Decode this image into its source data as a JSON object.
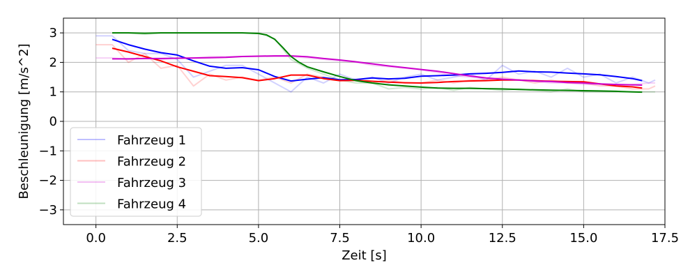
{
  "chart_data": {
    "type": "line",
    "xlabel": "Zeit [s]",
    "ylabel": "Beschleunigung [m/s^2]",
    "xlim": [
      -1,
      17.5
    ],
    "ylim": [
      -3.5,
      3.5
    ],
    "xticks": [
      0.0,
      2.5,
      5.0,
      7.5,
      10.0,
      12.5,
      15.0,
      17.5
    ],
    "xtick_labels": [
      "0.0",
      "2.5",
      "5.0",
      "7.5",
      "10.0",
      "12.5",
      "15.0",
      "17.5"
    ],
    "yticks": [
      3,
      2,
      1,
      0,
      -1,
      -2,
      -3
    ],
    "ytick_labels": [
      "3",
      "2",
      "1",
      "0",
      "−1",
      "−2",
      "−3"
    ],
    "grid": true,
    "legend_position": "lower-left",
    "series": [
      {
        "name": "Fahrzeug 1",
        "color": "#0000ff",
        "raw_x": [
          0.0,
          0.5,
          1.0,
          1.5,
          2.0,
          2.5,
          3.0,
          3.5,
          4.0,
          4.5,
          5.0,
          5.5,
          6.0,
          6.5,
          7.0,
          7.5,
          8.0,
          8.5,
          9.0,
          9.5,
          10.0,
          10.5,
          11.0,
          11.5,
          12.0,
          12.5,
          13.0,
          13.5,
          14.0,
          14.5,
          15.0,
          15.5,
          16.0,
          16.5,
          17.0,
          17.2
        ],
        "raw_y": [
          2.9,
          2.9,
          2.4,
          2.3,
          2.3,
          2.1,
          1.5,
          1.7,
          1.9,
          1.9,
          1.6,
          1.3,
          1.0,
          1.5,
          1.3,
          1.6,
          1.4,
          1.5,
          1.3,
          1.5,
          1.6,
          1.4,
          1.5,
          1.6,
          1.4,
          1.9,
          1.6,
          1.7,
          1.5,
          1.8,
          1.5,
          1.6,
          1.3,
          1.5,
          1.3,
          1.4
        ],
        "smooth_x": [
          0.5,
          1.0,
          1.5,
          2.0,
          2.5,
          3.0,
          3.5,
          4.0,
          4.5,
          5.0,
          5.5,
          6.0,
          6.5,
          7.0,
          7.5,
          8.0,
          8.5,
          9.0,
          9.5,
          10.0,
          10.5,
          11.0,
          11.5,
          12.0,
          12.5,
          13.0,
          13.5,
          14.0,
          14.5,
          15.0,
          15.5,
          16.0,
          16.5,
          16.8
        ],
        "smooth_y": [
          2.78,
          2.6,
          2.45,
          2.33,
          2.25,
          2.05,
          1.87,
          1.8,
          1.82,
          1.75,
          1.52,
          1.37,
          1.43,
          1.48,
          1.41,
          1.42,
          1.47,
          1.44,
          1.46,
          1.53,
          1.55,
          1.57,
          1.61,
          1.63,
          1.66,
          1.71,
          1.68,
          1.67,
          1.64,
          1.61,
          1.58,
          1.52,
          1.45,
          1.38
        ]
      },
      {
        "name": "Fahrzeug 2",
        "color": "#ff0000",
        "raw_x": [
          0.0,
          0.5,
          1.0,
          1.5,
          2.0,
          2.5,
          3.0,
          3.5,
          4.0,
          4.5,
          5.0,
          5.5,
          6.0,
          6.5,
          7.0,
          7.5,
          8.0,
          8.5,
          9.0,
          9.5,
          10.0,
          10.5,
          11.0,
          11.5,
          12.0,
          12.5,
          13.0,
          13.5,
          14.0,
          14.5,
          15.0,
          15.5,
          16.0,
          16.5,
          17.0,
          17.2
        ],
        "raw_y": [
          2.6,
          2.6,
          2.0,
          2.3,
          1.8,
          1.9,
          1.2,
          1.6,
          1.4,
          1.5,
          1.4,
          1.5,
          1.3,
          1.6,
          1.5,
          1.4,
          1.4,
          1.3,
          1.4,
          1.3,
          1.3,
          1.4,
          1.3,
          1.4,
          1.4,
          1.5,
          1.4,
          1.3,
          1.4,
          1.3,
          1.3,
          1.2,
          1.2,
          1.1,
          1.1,
          1.2
        ],
        "smooth_x": [
          0.5,
          1.0,
          1.5,
          2.0,
          2.5,
          3.0,
          3.5,
          4.0,
          4.5,
          5.0,
          5.5,
          6.0,
          6.5,
          7.0,
          7.5,
          8.0,
          8.5,
          9.0,
          9.5,
          10.0,
          10.5,
          11.0,
          11.5,
          12.0,
          12.5,
          13.0,
          13.5,
          14.0,
          14.5,
          15.0,
          15.5,
          16.0,
          16.5,
          16.8
        ],
        "smooth_y": [
          2.48,
          2.35,
          2.2,
          2.05,
          1.85,
          1.7,
          1.55,
          1.52,
          1.48,
          1.38,
          1.45,
          1.57,
          1.57,
          1.45,
          1.38,
          1.39,
          1.36,
          1.33,
          1.31,
          1.3,
          1.32,
          1.35,
          1.37,
          1.38,
          1.4,
          1.4,
          1.38,
          1.36,
          1.35,
          1.34,
          1.27,
          1.2,
          1.17,
          1.13
        ]
      },
      {
        "name": "Fahrzeug 3",
        "color": "#cc00cc",
        "raw_x": [
          0.0,
          0.5,
          1.0,
          1.5,
          2.0,
          2.5,
          3.0,
          3.5,
          4.0,
          4.5,
          5.0,
          5.5,
          6.0,
          6.5,
          7.0,
          7.5,
          8.0,
          8.5,
          9.0,
          9.5,
          10.0,
          10.5,
          11.0,
          11.5,
          12.0,
          12.5,
          13.0,
          13.5,
          14.0,
          14.5,
          15.0,
          15.5,
          16.0,
          16.5,
          17.0,
          17.2
        ],
        "raw_y": [
          2.15,
          2.15,
          2.1,
          2.15,
          2.1,
          2.15,
          2.15,
          2.2,
          2.2,
          2.2,
          2.2,
          2.2,
          2.2,
          2.15,
          2.1,
          2.05,
          2.0,
          1.9,
          1.85,
          1.8,
          1.75,
          1.65,
          1.55,
          1.5,
          1.45,
          1.4,
          1.4,
          1.35,
          1.3,
          1.3,
          1.25,
          1.25,
          1.2,
          1.25,
          1.3,
          1.3
        ],
        "smooth_x": [
          0.5,
          1.0,
          1.5,
          2.0,
          2.5,
          3.0,
          3.5,
          4.0,
          4.5,
          5.0,
          5.5,
          6.0,
          6.5,
          7.0,
          7.5,
          8.0,
          8.5,
          9.0,
          9.5,
          10.0,
          10.5,
          11.0,
          11.5,
          12.0,
          12.5,
          13.0,
          13.5,
          14.0,
          14.5,
          15.0,
          15.5,
          16.0,
          16.5,
          16.8
        ],
        "smooth_y": [
          2.12,
          2.12,
          2.13,
          2.13,
          2.14,
          2.15,
          2.16,
          2.17,
          2.2,
          2.21,
          2.22,
          2.22,
          2.19,
          2.13,
          2.08,
          2.02,
          1.95,
          1.88,
          1.82,
          1.76,
          1.7,
          1.62,
          1.54,
          1.47,
          1.43,
          1.4,
          1.37,
          1.35,
          1.32,
          1.3,
          1.27,
          1.25,
          1.24,
          1.23
        ]
      },
      {
        "name": "Fahrzeug 4",
        "color": "#008000",
        "raw_x": [
          0.5,
          1.0,
          1.5,
          2.0,
          2.5,
          3.0,
          3.5,
          4.0,
          4.5,
          5.0,
          5.5,
          6.0,
          6.5,
          7.0,
          7.5,
          8.0,
          8.5,
          9.0,
          9.5,
          10.0,
          10.5,
          11.0,
          11.5,
          12.0,
          12.5,
          13.0,
          13.5,
          14.0,
          14.5,
          15.0,
          15.5,
          16.0,
          16.5,
          17.0,
          17.2
        ],
        "raw_y": [
          3.0,
          3.0,
          2.95,
          3.0,
          3.0,
          3.0,
          3.0,
          3.0,
          3.0,
          3.0,
          2.8,
          2.1,
          1.8,
          1.6,
          1.4,
          1.3,
          1.3,
          1.1,
          1.15,
          1.1,
          1.15,
          1.05,
          1.15,
          1.1,
          1.05,
          1.1,
          1.05,
          1.0,
          1.1,
          1.0,
          1.0,
          1.0,
          1.0,
          1.0,
          1.0
        ],
        "smooth_x": [
          0.5,
          1.0,
          1.5,
          2.0,
          2.5,
          3.0,
          3.5,
          4.0,
          4.5,
          5.0,
          5.25,
          5.5,
          5.75,
          6.0,
          6.25,
          6.5,
          7.0,
          7.5,
          8.0,
          8.5,
          9.0,
          9.5,
          10.0,
          10.5,
          11.0,
          11.5,
          12.0,
          12.5,
          13.0,
          13.5,
          14.0,
          14.5,
          15.0,
          15.5,
          16.0,
          16.5,
          16.8
        ],
        "smooth_y": [
          3.0,
          3.0,
          2.99,
          3.0,
          3.0,
          3.0,
          3.0,
          3.0,
          3.0,
          2.98,
          2.93,
          2.78,
          2.5,
          2.2,
          2.0,
          1.85,
          1.68,
          1.52,
          1.38,
          1.3,
          1.24,
          1.2,
          1.16,
          1.13,
          1.12,
          1.12,
          1.11,
          1.1,
          1.08,
          1.07,
          1.06,
          1.05,
          1.04,
          1.03,
          1.02,
          1.0,
          0.99
        ]
      }
    ]
  }
}
